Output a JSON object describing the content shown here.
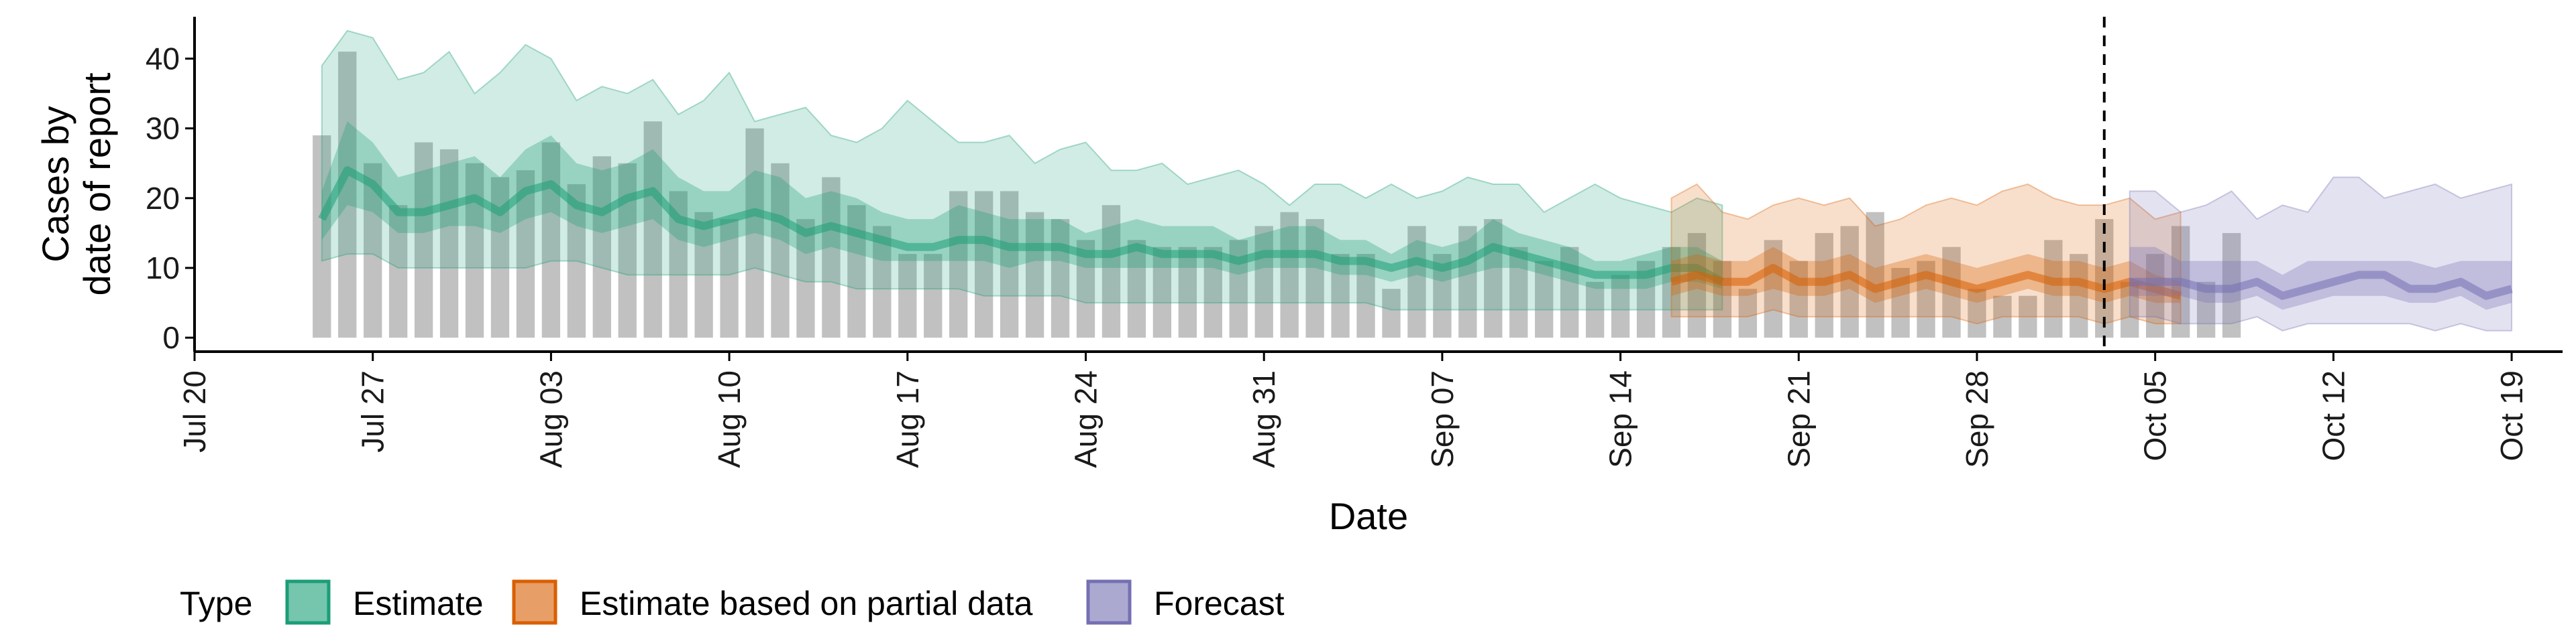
{
  "chart_data": {
    "type": "area",
    "title": "",
    "xlabel": "Date",
    "ylabel": "Cases by\ndate of report",
    "x_ticks": [
      "Jul 20",
      "Jul 27",
      "Aug 03",
      "Aug 10",
      "Aug 17",
      "Aug 24",
      "Aug 31",
      "Sep 07",
      "Sep 14",
      "Sep 21",
      "Sep 28",
      "Oct 05",
      "Oct 12",
      "Oct 19"
    ],
    "y_ticks": [
      0,
      10,
      20,
      30,
      40
    ],
    "ylim": [
      -2,
      46
    ],
    "xlim": [
      "2020-07-19",
      "2020-10-20"
    ],
    "grid": false,
    "legend_position": "bottom",
    "legend_title": "Type",
    "forecast_cutoff": "2020-10-02",
    "colors": {
      "Estimate": "#1b9e77",
      "Estimate based on partial data": "#d95f02",
      "Forecast": "#7570b3",
      "bars": "#a9a9a9"
    },
    "bars": {
      "start_date": "2020-07-24",
      "values": [
        29,
        41,
        25,
        19,
        28,
        27,
        25,
        23,
        24,
        28,
        22,
        26,
        25,
        31,
        21,
        18,
        17,
        30,
        25,
        17,
        23,
        19,
        16,
        12,
        12,
        21,
        21,
        21,
        18,
        17,
        14,
        19,
        14,
        13,
        13,
        13,
        14,
        16,
        18,
        17,
        12,
        12,
        7,
        16,
        12,
        16,
        17,
        13,
        11,
        13,
        8,
        9,
        11,
        13,
        15,
        11,
        7,
        14,
        11,
        15,
        16,
        18,
        10,
        11,
        13,
        7,
        6,
        6,
        14,
        12,
        17,
        8,
        12,
        16,
        8,
        15
      ]
    },
    "series": [
      {
        "name": "Estimate",
        "start_date": "2020-07-24",
        "median": [
          17,
          24,
          22,
          18,
          18,
          19,
          20,
          18,
          21,
          22,
          19,
          18,
          20,
          21,
          17,
          16,
          17,
          18,
          17,
          15,
          16,
          15,
          14,
          13,
          13,
          14,
          14,
          13,
          13,
          13,
          12,
          12,
          13,
          12,
          12,
          12,
          11,
          12,
          12,
          12,
          11,
          11,
          10,
          11,
          10,
          11,
          13,
          12,
          11,
          10,
          9,
          9,
          9,
          10,
          10,
          8
        ],
        "inner_low": [
          14,
          19,
          18,
          15,
          15,
          16,
          16,
          15,
          17,
          18,
          16,
          15,
          16,
          17,
          14,
          13,
          14,
          15,
          14,
          12,
          13,
          12,
          11,
          11,
          11,
          11,
          11,
          10,
          11,
          11,
          10,
          10,
          10,
          10,
          10,
          10,
          9,
          10,
          10,
          10,
          9,
          9,
          8,
          9,
          8,
          9,
          10,
          10,
          9,
          8,
          7,
          7,
          7,
          8,
          8,
          7
        ],
        "inner_high": [
          21,
          31,
          28,
          23,
          24,
          25,
          26,
          23,
          27,
          29,
          25,
          24,
          25,
          27,
          23,
          21,
          21,
          24,
          23,
          20,
          21,
          20,
          18,
          17,
          17,
          19,
          18,
          17,
          17,
          17,
          15,
          16,
          17,
          16,
          16,
          16,
          14,
          15,
          16,
          16,
          14,
          14,
          12,
          14,
          13,
          14,
          17,
          15,
          14,
          13,
          11,
          11,
          12,
          13,
          13,
          11
        ],
        "outer_low": [
          11,
          12,
          12,
          10,
          10,
          10,
          10,
          10,
          10,
          11,
          11,
          10,
          9,
          9,
          9,
          9,
          9,
          10,
          9,
          8,
          8,
          7,
          7,
          7,
          7,
          7,
          6,
          6,
          6,
          6,
          5,
          5,
          5,
          5,
          5,
          5,
          5,
          5,
          5,
          5,
          5,
          5,
          4,
          4,
          4,
          4,
          4,
          4,
          4,
          4,
          4,
          4,
          4,
          4,
          4,
          4
        ],
        "outer_high": [
          39,
          44,
          43,
          37,
          38,
          41,
          35,
          38,
          42,
          40,
          34,
          36,
          35,
          37,
          32,
          34,
          38,
          31,
          32,
          33,
          29,
          28,
          30,
          34,
          31,
          28,
          28,
          29,
          25,
          27,
          28,
          24,
          24,
          25,
          22,
          23,
          24,
          22,
          19,
          22,
          22,
          20,
          22,
          20,
          21,
          23,
          22,
          22,
          18,
          20,
          22,
          20,
          19,
          18,
          20,
          19
        ]
      },
      {
        "name": "Estimate based on partial data",
        "start_date": "2020-09-15",
        "median": [
          8,
          9,
          8,
          8,
          10,
          8,
          8,
          9,
          7,
          8,
          9,
          8,
          7,
          8,
          9,
          8,
          8,
          7,
          8,
          7,
          6
        ],
        "inner_low": [
          6,
          7,
          6,
          6,
          7,
          6,
          6,
          7,
          5,
          6,
          7,
          6,
          5,
          6,
          7,
          6,
          6,
          5,
          6,
          5,
          5
        ],
        "inner_high": [
          11,
          12,
          11,
          11,
          13,
          11,
          11,
          12,
          10,
          11,
          12,
          11,
          10,
          11,
          12,
          11,
          11,
          10,
          11,
          9,
          8
        ],
        "outer_low": [
          3,
          3,
          3,
          3,
          4,
          3,
          3,
          3,
          3,
          3,
          3,
          3,
          2,
          3,
          3,
          3,
          3,
          2,
          3,
          2,
          2
        ],
        "outer_high": [
          20,
          22,
          18,
          17,
          19,
          20,
          19,
          20,
          16,
          17,
          19,
          20,
          19,
          21,
          22,
          20,
          19,
          19,
          20,
          17,
          18
        ]
      },
      {
        "name": "Forecast",
        "start_date": "2020-10-03",
        "median": [
          8,
          8,
          8,
          7,
          7,
          8,
          6,
          7,
          8,
          9,
          9,
          7,
          7,
          8,
          6,
          7
        ],
        "inner_low": [
          6,
          6,
          6,
          5,
          5,
          6,
          4,
          5,
          6,
          6,
          6,
          5,
          5,
          6,
          4,
          5
        ],
        "inner_high": [
          13,
          13,
          11,
          11,
          11,
          11,
          9,
          11,
          11,
          11,
          11,
          11,
          10,
          11,
          11,
          11
        ],
        "outer_low": [
          3,
          3,
          2,
          2,
          2,
          3,
          1,
          2,
          2,
          2,
          2,
          2,
          1,
          2,
          1,
          1
        ],
        "outer_high": [
          21,
          21,
          18,
          19,
          21,
          17,
          19,
          18,
          23,
          23,
          20,
          21,
          22,
          20,
          21,
          22
        ]
      }
    ]
  }
}
